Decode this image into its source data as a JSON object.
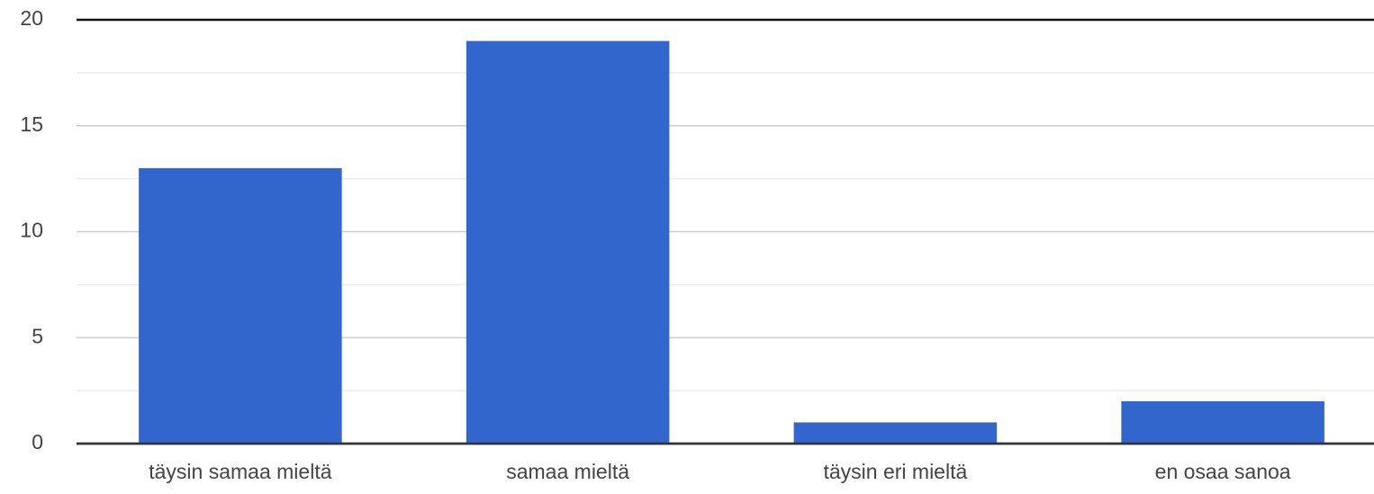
{
  "chart_data": {
    "type": "bar",
    "categories": [
      "täysin samaa mieltä",
      "samaa mieltä",
      "täysin eri mieltä",
      "en osaa sanoa"
    ],
    "values": [
      13,
      19,
      1,
      2
    ],
    "color": "#3366cc",
    "ylim": [
      0,
      20
    ],
    "yticks": [
      0,
      5,
      10,
      15,
      20
    ],
    "minor_yticks": [
      2.5,
      7.5,
      12.5,
      17.5
    ],
    "grid": true
  }
}
